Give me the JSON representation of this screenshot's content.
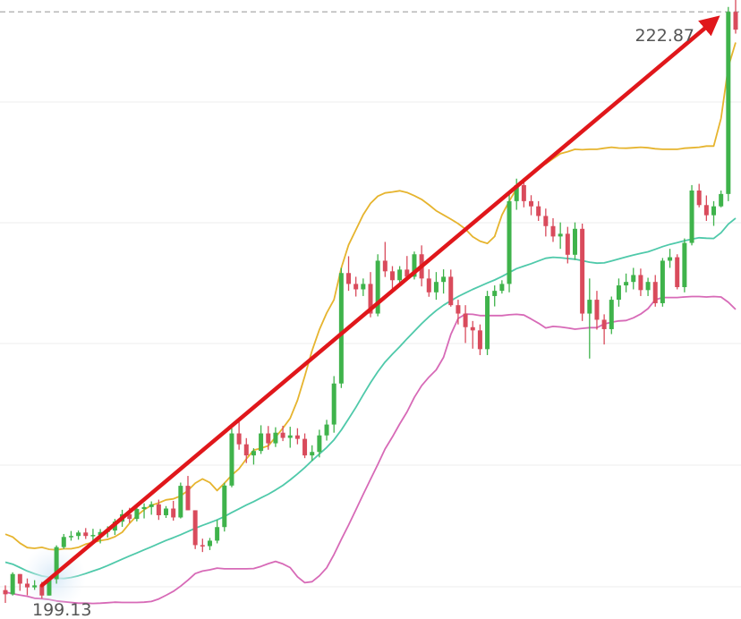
{
  "chart_data": {
    "type": "candlestick",
    "ylim": [
      198.3,
      223.35
    ],
    "x": [
      0,
      1,
      2,
      3,
      4,
      5,
      6,
      7,
      8,
      9,
      10,
      11,
      12,
      13,
      14,
      15,
      16,
      17,
      18,
      19,
      20,
      21,
      22,
      23,
      24,
      25,
      26,
      27,
      28,
      29,
      30,
      31,
      32,
      33,
      34,
      35,
      36,
      37,
      38,
      39,
      40,
      41,
      42,
      43,
      44,
      45,
      46,
      47,
      48,
      49,
      50,
      51,
      52,
      53,
      54,
      55,
      56,
      57,
      58,
      59,
      60,
      61,
      62,
      63,
      64,
      65,
      66,
      67,
      68,
      69,
      70,
      71,
      72,
      73,
      74,
      75,
      76,
      77,
      78,
      79,
      80,
      81,
      82,
      83,
      84,
      85,
      86,
      87,
      88,
      89,
      90,
      91,
      92,
      93,
      94,
      95,
      96,
      97,
      98,
      99,
      100
    ],
    "candles": [
      [
        199.47,
        199.66,
        198.95,
        199.3
      ],
      [
        199.3,
        200.19,
        199.25,
        200.12
      ],
      [
        200.12,
        200.12,
        199.44,
        199.73
      ],
      [
        199.73,
        199.94,
        199.26,
        199.58
      ],
      [
        199.58,
        199.87,
        199.48,
        199.66
      ],
      [
        199.66,
        199.8,
        199.13,
        199.25
      ],
      [
        199.25,
        199.94,
        199.25,
        199.91
      ],
      [
        199.91,
        201.28,
        199.73,
        201.21
      ],
      [
        201.21,
        201.74,
        201.14,
        201.62
      ],
      [
        201.62,
        201.86,
        201.47,
        201.66
      ],
      [
        201.66,
        201.88,
        201.51,
        201.8
      ],
      [
        201.8,
        201.98,
        201.54,
        201.66
      ],
      [
        201.66,
        201.95,
        201.43,
        201.7
      ],
      [
        201.7,
        201.94,
        201.36,
        201.82
      ],
      [
        201.82,
        202.05,
        201.6,
        201.88
      ],
      [
        201.88,
        202.35,
        201.7,
        202.24
      ],
      [
        202.24,
        202.72,
        202.03,
        202.54
      ],
      [
        202.54,
        202.8,
        202.19,
        202.35
      ],
      [
        202.35,
        202.91,
        202.25,
        202.75
      ],
      [
        202.75,
        202.98,
        202.37,
        202.83
      ],
      [
        202.83,
        203.06,
        202.52,
        202.94
      ],
      [
        202.94,
        203.13,
        202.31,
        202.5
      ],
      [
        202.5,
        202.87,
        202.39,
        202.77
      ],
      [
        202.77,
        203.08,
        202.28,
        202.41
      ],
      [
        202.41,
        203.82,
        202.37,
        203.69
      ],
      [
        203.69,
        204.09,
        202.7,
        202.7
      ],
      [
        202.7,
        202.7,
        201.13,
        201.29
      ],
      [
        201.29,
        201.55,
        201.01,
        201.25
      ],
      [
        201.25,
        201.58,
        201.09,
        201.47
      ],
      [
        201.47,
        202.31,
        201.36,
        202.02
      ],
      [
        202.02,
        203.81,
        201.84,
        203.7
      ],
      [
        203.7,
        206.02,
        203.63,
        205.81
      ],
      [
        205.81,
        206.32,
        205.15,
        205.37
      ],
      [
        205.37,
        205.62,
        204.61,
        204.92
      ],
      [
        204.92,
        205.21,
        204.55,
        205.1
      ],
      [
        205.1,
        206.14,
        204.98,
        205.81
      ],
      [
        205.81,
        206.11,
        205.15,
        205.41
      ],
      [
        205.41,
        206.06,
        205.26,
        205.84
      ],
      [
        205.84,
        206.12,
        205.5,
        205.63
      ],
      [
        205.63,
        206.08,
        205.23,
        205.73
      ],
      [
        205.73,
        206.02,
        205.37,
        205.59
      ],
      [
        205.59,
        205.81,
        204.81,
        204.92
      ],
      [
        204.92,
        205.33,
        204.7,
        205.06
      ],
      [
        205.06,
        205.96,
        204.84,
        205.73
      ],
      [
        205.73,
        206.36,
        205.52,
        206.17
      ],
      [
        206.17,
        208.13,
        205.84,
        207.83
      ],
      [
        207.83,
        212.51,
        207.65,
        212.3
      ],
      [
        212.3,
        212.98,
        211.58,
        211.86
      ],
      [
        211.86,
        212.15,
        211.35,
        211.64
      ],
      [
        211.64,
        212.08,
        211.37,
        211.86
      ],
      [
        211.86,
        212.34,
        210.51,
        210.66
      ],
      [
        210.66,
        213.06,
        210.55,
        212.8
      ],
      [
        212.8,
        213.56,
        212.14,
        212.37
      ],
      [
        212.37,
        212.58,
        211.52,
        212.01
      ],
      [
        212.01,
        212.58,
        211.86,
        212.44
      ],
      [
        212.44,
        212.99,
        212.01,
        212.15
      ],
      [
        212.15,
        213.17,
        212.04,
        213.06
      ],
      [
        213.06,
        213.42,
        211.76,
        212.08
      ],
      [
        212.08,
        212.45,
        211.34,
        211.52
      ],
      [
        211.52,
        212.34,
        211.22,
        211.94
      ],
      [
        211.94,
        212.45,
        211.47,
        212.15
      ],
      [
        212.15,
        212.44,
        210.94,
        211.0
      ],
      [
        211.0,
        211.22,
        210.22,
        210.66
      ],
      [
        210.66,
        211.0,
        209.47,
        210.11
      ],
      [
        210.11,
        210.36,
        209.24,
        209.98
      ],
      [
        209.98,
        210.22,
        208.98,
        209.22
      ],
      [
        209.22,
        211.58,
        208.98,
        211.37
      ],
      [
        211.37,
        211.8,
        210.95,
        211.58
      ],
      [
        211.58,
        212.01,
        211.47,
        211.86
      ],
      [
        211.86,
        215.5,
        211.52,
        215.21
      ],
      [
        215.21,
        216.12,
        214.86,
        215.86
      ],
      [
        215.86,
        216.08,
        214.96,
        215.21
      ],
      [
        215.21,
        215.45,
        214.64,
        215.0
      ],
      [
        215.0,
        215.21,
        214.41,
        214.61
      ],
      [
        214.61,
        214.91,
        213.78,
        214.2
      ],
      [
        214.2,
        214.52,
        213.56,
        213.78
      ],
      [
        213.78,
        214.35,
        213.28,
        213.89
      ],
      [
        213.89,
        214.17,
        212.69,
        213.04
      ],
      [
        213.04,
        214.35,
        212.83,
        214.09
      ],
      [
        214.09,
        214.3,
        210.36,
        210.66
      ],
      [
        210.66,
        212.08,
        208.84,
        211.22
      ],
      [
        211.22,
        211.58,
        210.01,
        210.41
      ],
      [
        210.41,
        210.63,
        209.41,
        210.03
      ],
      [
        210.03,
        211.35,
        209.83,
        211.22
      ],
      [
        211.22,
        212.08,
        210.94,
        211.8
      ],
      [
        211.8,
        212.28,
        211.52,
        211.94
      ],
      [
        211.94,
        212.51,
        211.64,
        212.22
      ],
      [
        212.22,
        212.48,
        211.37,
        211.61
      ],
      [
        211.61,
        212.11,
        211.37,
        211.94
      ],
      [
        211.94,
        212.22,
        210.94,
        211.08
      ],
      [
        211.08,
        212.91,
        210.94,
        212.8
      ],
      [
        212.8,
        213.28,
        212.51,
        212.94
      ],
      [
        212.94,
        213.06,
        211.64,
        211.73
      ],
      [
        211.73,
        213.7,
        211.52,
        213.52
      ],
      [
        213.52,
        215.86,
        213.42,
        215.64
      ],
      [
        215.64,
        215.91,
        214.96,
        215.05
      ],
      [
        215.05,
        215.44,
        214.41,
        214.64
      ],
      [
        214.64,
        215.21,
        214.21,
        215.0
      ],
      [
        215.0,
        215.64,
        214.96,
        215.5
      ],
      [
        215.5,
        223.07,
        215.21,
        222.87
      ],
      [
        222.87,
        223.42,
        221.99,
        222.15
      ]
    ],
    "series": [
      {
        "name": "",
        "color": "#e6b42e",
        "values": [
          201.73,
          201.62,
          201.37,
          201.19,
          201.16,
          201.2,
          201.12,
          201.1,
          201.14,
          201.14,
          201.2,
          201.33,
          201.4,
          201.47,
          201.52,
          201.63,
          201.81,
          202.17,
          202.48,
          202.72,
          202.9,
          203.0,
          203.12,
          203.16,
          203.28,
          203.5,
          203.8,
          203.97,
          203.82,
          203.5,
          203.8,
          204.12,
          204.38,
          204.78,
          205.13,
          205.21,
          205.31,
          205.66,
          206.02,
          206.42,
          207.15,
          208.13,
          209.16,
          210.01,
          210.68,
          211.22,
          212.51,
          213.44,
          214.05,
          214.66,
          215.12,
          215.41,
          215.54,
          215.58,
          215.63,
          215.56,
          215.43,
          215.28,
          215.06,
          214.82,
          214.65,
          214.48,
          214.3,
          214.08,
          213.77,
          213.59,
          213.5,
          213.78,
          214.65,
          215.21,
          215.72,
          216.12,
          216.31,
          216.59,
          216.72,
          216.93,
          217.13,
          217.21,
          217.31,
          217.29,
          217.31,
          217.31,
          217.35,
          217.39,
          217.36,
          217.35,
          217.37,
          217.39,
          217.37,
          217.33,
          217.31,
          217.31,
          217.31,
          217.35,
          217.37,
          217.39,
          217.44,
          217.44,
          218.56,
          220.64,
          221.63
        ]
      },
      {
        "name": "",
        "color": "#4fc9aa",
        "values": [
          200.6,
          200.52,
          200.38,
          200.24,
          200.13,
          200.04,
          199.99,
          199.95,
          199.94,
          199.98,
          200.05,
          200.14,
          200.24,
          200.34,
          200.46,
          200.59,
          200.72,
          200.85,
          200.97,
          201.1,
          201.22,
          201.35,
          201.48,
          201.59,
          201.71,
          201.84,
          201.97,
          202.09,
          202.2,
          202.31,
          202.45,
          202.61,
          202.76,
          202.91,
          203.05,
          203.2,
          203.35,
          203.52,
          203.71,
          203.93,
          204.17,
          204.43,
          204.71,
          204.98,
          205.24,
          205.55,
          205.95,
          206.4,
          206.87,
          207.37,
          207.86,
          208.31,
          208.7,
          209.02,
          209.32,
          209.64,
          209.95,
          210.25,
          210.53,
          210.78,
          211.0,
          211.18,
          211.35,
          211.5,
          211.64,
          211.77,
          211.9,
          212.02,
          212.16,
          212.32,
          212.48,
          212.58,
          212.68,
          212.79,
          212.9,
          212.94,
          212.92,
          212.89,
          212.86,
          212.8,
          212.74,
          212.7,
          212.71,
          212.79,
          212.87,
          212.95,
          213.03,
          213.1,
          213.16,
          213.26,
          213.37,
          213.46,
          213.53,
          213.61,
          213.67,
          213.73,
          213.71,
          213.7,
          213.93,
          214.28,
          214.52
        ]
      },
      {
        "name": "",
        "color": "#d76ab7",
        "values": [
          199.39,
          199.32,
          199.27,
          199.22,
          199.14,
          199.12,
          199.09,
          199.03,
          199.0,
          198.97,
          198.94,
          198.94,
          198.93,
          198.94,
          198.96,
          198.98,
          198.97,
          198.97,
          198.97,
          198.98,
          199.01,
          199.11,
          199.26,
          199.42,
          199.63,
          199.87,
          200.14,
          200.24,
          200.29,
          200.36,
          200.33,
          200.33,
          200.33,
          200.33,
          200.34,
          200.43,
          200.54,
          200.63,
          200.53,
          200.38,
          200.01,
          199.77,
          199.81,
          200.05,
          200.37,
          200.91,
          201.52,
          202.1,
          202.72,
          203.34,
          203.95,
          204.56,
          205.18,
          205.67,
          206.19,
          206.68,
          207.27,
          207.74,
          208.09,
          208.38,
          208.89,
          209.82,
          210.46,
          210.64,
          210.63,
          210.58,
          210.58,
          210.58,
          210.58,
          210.61,
          210.63,
          210.6,
          210.44,
          210.27,
          210.08,
          210.14,
          210.12,
          210.08,
          210.03,
          210.06,
          210.09,
          210.09,
          210.24,
          210.31,
          210.36,
          210.38,
          210.49,
          210.64,
          210.86,
          211.22,
          211.31,
          211.31,
          211.31,
          211.33,
          211.35,
          211.35,
          211.33,
          211.35,
          211.33,
          211.12,
          210.83
        ]
      }
    ],
    "labels": {
      "high": "222.87",
      "low": "199.13"
    },
    "trend_arrow": {
      "from": [
        5,
        199.66
      ],
      "to": [
        98,
        222.73
      ],
      "color": "#e0171b"
    },
    "colors": {
      "up": "#3fb34b",
      "down": "#d94b5c",
      "grid": "#ececec",
      "ref_line": "#aaaaaa"
    }
  }
}
